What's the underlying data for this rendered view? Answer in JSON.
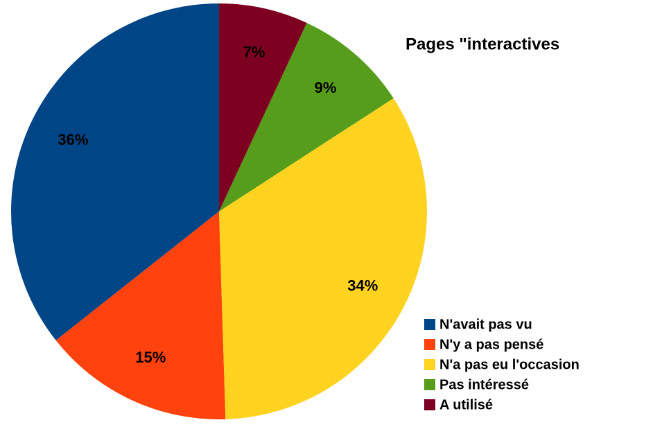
{
  "chart_data": {
    "type": "pie",
    "title": "Pages \"interactives",
    "categories": [
      "N'avait pas vu",
      "N'y a pas pensé",
      "N'a pas eu l'occasion",
      "Pas intéressé",
      "A utilisé"
    ],
    "values": [
      36,
      15,
      34,
      9,
      7
    ],
    "value_labels": [
      "36%",
      "15%",
      "34%",
      "9%",
      "7%"
    ],
    "colors": [
      "#004586",
      "#ff420e",
      "#ffd320",
      "#579d1c",
      "#7e0021"
    ],
    "legend": "right"
  }
}
